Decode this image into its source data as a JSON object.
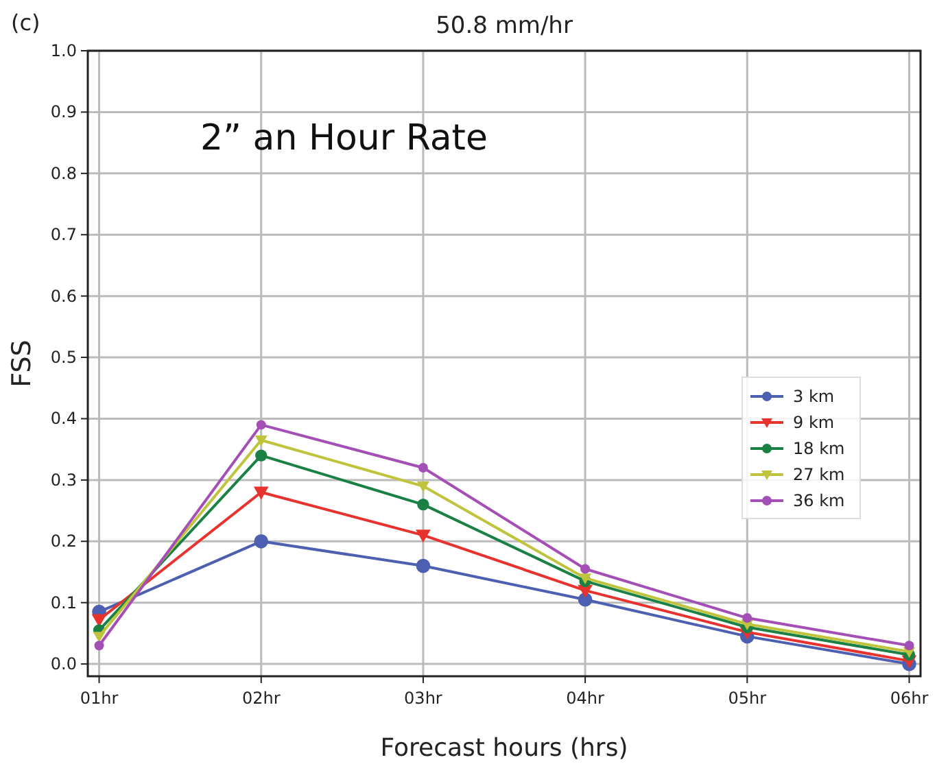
{
  "chart_data": {
    "type": "line",
    "title": "50.8 mm/hr",
    "xlabel": "Forecast hours (hrs)",
    "ylabel": "FSS",
    "annotations": [
      "(c)",
      "2” an Hour Rate"
    ],
    "categories": [
      "01hr",
      "02hr",
      "03hr",
      "04hr",
      "05hr",
      "06hr"
    ],
    "ylim": [
      -0.02,
      1.0
    ],
    "yticks": [
      {
        "value": 0,
        "label": "0.0"
      },
      0.1,
      0.2,
      0.3,
      0.4,
      0.5,
      0.6,
      0.7,
      0.8,
      0.9,
      {
        "value": 1,
        "label": "1.0"
      }
    ],
    "grid": true,
    "legend": "right",
    "line_style": "solid",
    "series": [
      {
        "name": "3 km",
        "color": "#4c5fb0",
        "marker": "circle",
        "values": [
          0.085,
          0.2,
          0.16,
          0.105,
          0.045,
          0.0
        ]
      },
      {
        "name": "9 km",
        "color": "#e8322e",
        "marker": "triangle",
        "values": [
          0.072,
          0.28,
          0.21,
          0.12,
          0.052,
          0.005
        ]
      },
      {
        "name": "18 km",
        "color": "#1a8044",
        "marker": "circle",
        "values": [
          0.055,
          0.34,
          0.26,
          0.135,
          0.06,
          0.015
        ]
      },
      {
        "name": "27 km",
        "color": "#bfc43c",
        "marker": "triangle",
        "values": [
          0.045,
          0.365,
          0.29,
          0.14,
          0.065,
          0.02
        ]
      },
      {
        "name": "36 km",
        "color": "#a44fb5",
        "marker": "circle",
        "values": [
          0.03,
          0.39,
          0.32,
          0.155,
          0.075,
          0.03
        ]
      }
    ]
  }
}
